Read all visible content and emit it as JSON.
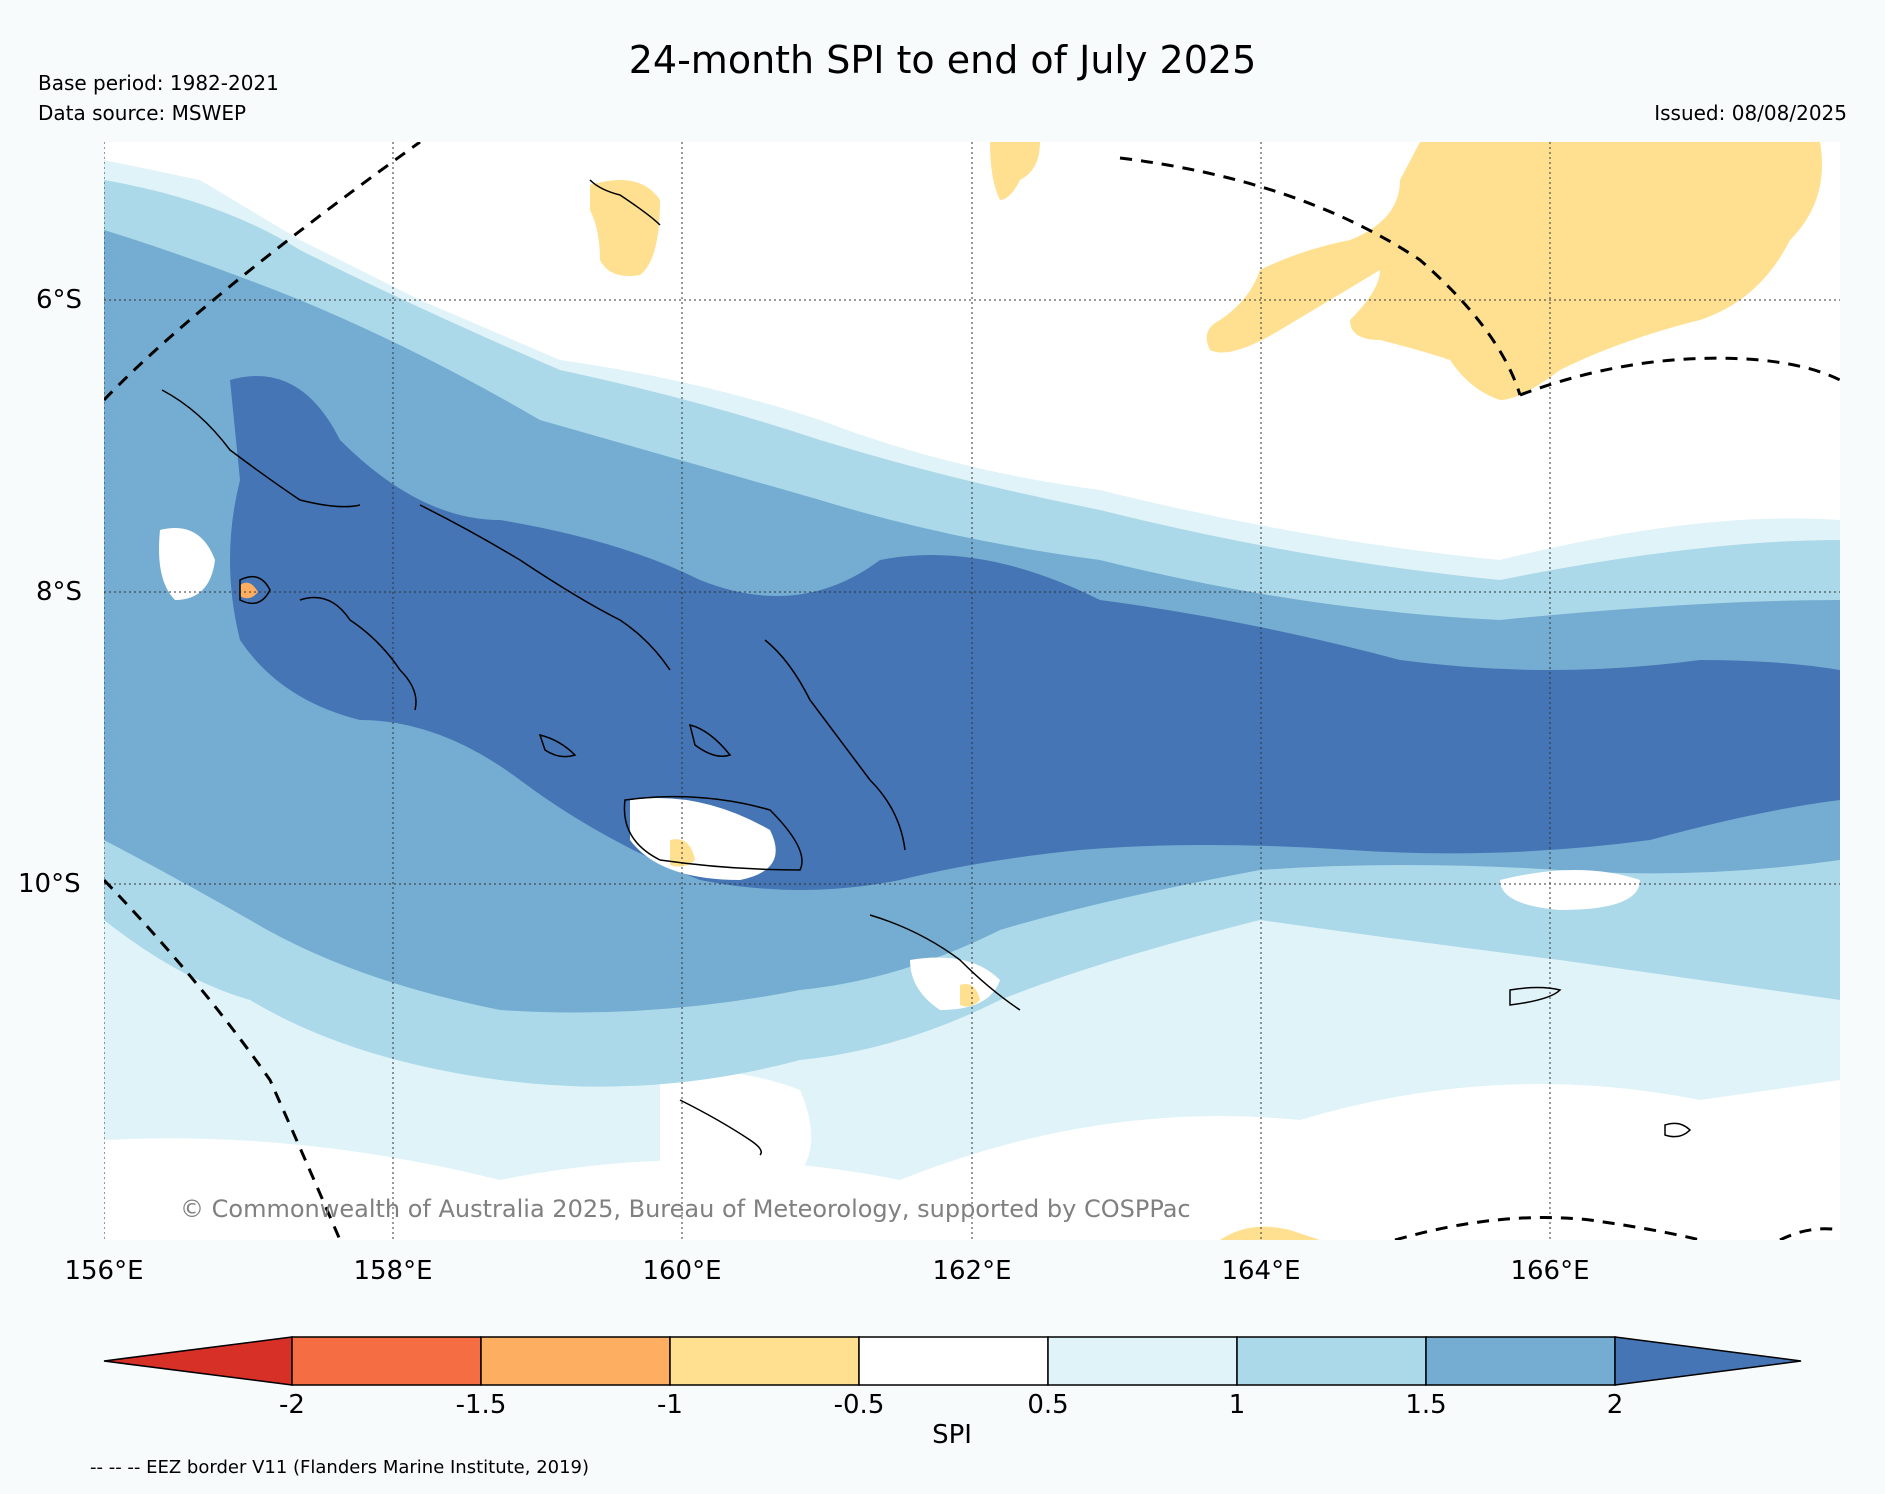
{
  "header": {
    "title": "24-month SPI to end of July 2025",
    "base_period": "Base period: 1982-2021",
    "data_source": "Data source: MSWEP",
    "issued": "Issued: 08/08/2025"
  },
  "map": {
    "lat_labels": [
      "6°S",
      "8°S",
      "10°S"
    ],
    "lon_labels": [
      "156°E",
      "158°E",
      "160°E",
      "162°E",
      "164°E",
      "166°E"
    ],
    "copyright": "© Commonwealth of Australia 2025, Bureau of Meteorology, supported by COSPPac",
    "spi_colors": {
      "below_-2": "#d73027",
      "-2_to_-1.5": "#f46d43",
      "-1.5_to_-1": "#fdae61",
      "-1_to_-0.5": "#fee090",
      "-0.5_to_0.5": "#ffffff",
      "0.5_to_1": "#e0f3f8",
      "1_to_1.5": "#abd9e9",
      "1.5_to_2": "#74add1",
      "above_2": "#4575b4"
    }
  },
  "colorbar": {
    "ticks": [
      "-2",
      "-1.5",
      "-1",
      "-0.5",
      "0.5",
      "1",
      "1.5",
      "2"
    ],
    "label": "SPI",
    "colors": [
      "#d73027",
      "#f46d43",
      "#fdae61",
      "#fee090",
      "#ffffff",
      "#e0f3f8",
      "#abd9e9",
      "#74add1",
      "#4575b4"
    ]
  },
  "footer": {
    "eez_note": "-- -- -- EEZ border V11 (Flanders Marine Institute, 2019)"
  }
}
